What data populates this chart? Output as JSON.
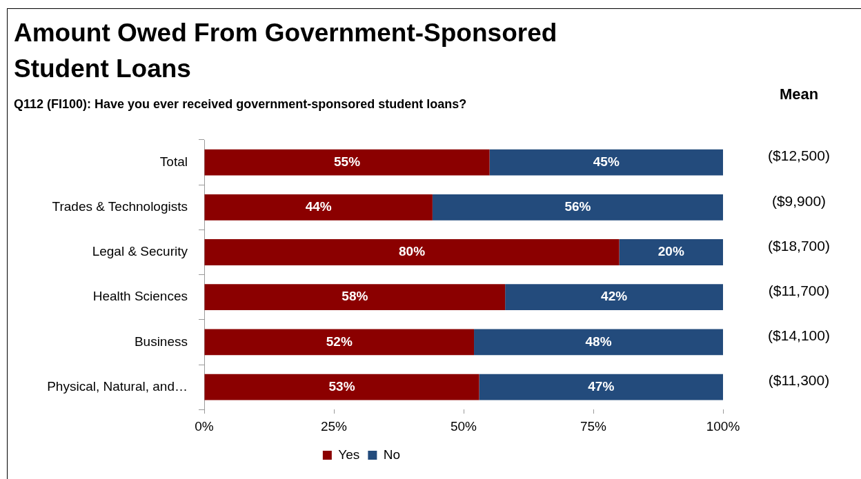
{
  "chart_data": {
    "type": "bar",
    "orientation": "horizontal",
    "stacked": true,
    "title": "Amount Owed From Government-Sponsored Student Loans",
    "subtitle": "Q112 (FI100): Have you ever received government-sponsored student loans?",
    "categories": [
      "Total",
      "Trades & Technologists",
      "Legal & Security",
      "Health Sciences",
      "Business",
      "Physical, Natural, and…"
    ],
    "series": [
      {
        "name": "Yes",
        "color": "#8b0000",
        "values": [
          55,
          44,
          80,
          58,
          52,
          53
        ],
        "value_labels": [
          "55%",
          "44%",
          "80%",
          "58%",
          "52%",
          "53%"
        ]
      },
      {
        "name": "No",
        "color": "#234b7c",
        "values": [
          45,
          56,
          20,
          42,
          48,
          47
        ],
        "value_labels": [
          "45%",
          "56%",
          "20%",
          "42%",
          "48%",
          "47%"
        ]
      }
    ],
    "xlim": [
      0,
      100
    ],
    "xticks": [
      {
        "value": 0,
        "label": "0%"
      },
      {
        "value": 25,
        "label": "25%"
      },
      {
        "value": 50,
        "label": "50%"
      },
      {
        "value": 75,
        "label": "75%"
      },
      {
        "value": 100,
        "label": "100%"
      }
    ],
    "annotations": [
      "Mean",
      "($12,500)",
      "($9,900)",
      "($18,700)",
      "($11,700)",
      "($14,100)",
      "($11,300)"
    ],
    "grid": false,
    "legend": "bottom"
  }
}
